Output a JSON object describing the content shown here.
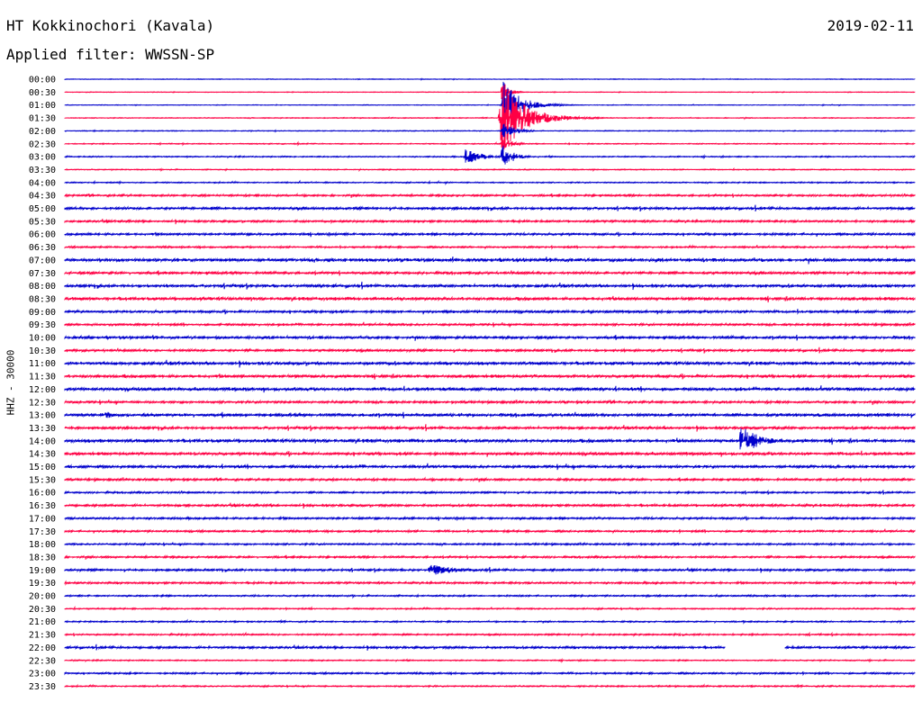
{
  "header": {
    "station": "HT Kokkinochori (Kavala)",
    "filter": "Applied filter: WWSSN-SP",
    "date": "2019-02-11"
  },
  "chart_data": {
    "type": "line",
    "title": "HT Kokkinochori (Kavala)",
    "subtitle": "Applied filter: WWSSN-SP",
    "date": "2019-02-11",
    "ylabel": "HHZ - 30000",
    "xlabel": "",
    "line_minutes": 30,
    "colors": {
      "even_row": "#0000cc",
      "odd_row": "#ff0044"
    },
    "trace_labels": [
      "00:00",
      "00:30",
      "01:00",
      "01:30",
      "02:00",
      "02:30",
      "03:00",
      "03:30",
      "04:00",
      "04:30",
      "05:00",
      "05:30",
      "06:00",
      "06:30",
      "07:00",
      "07:30",
      "08:00",
      "08:30",
      "09:00",
      "09:30",
      "10:00",
      "10:30",
      "11:00",
      "11:30",
      "12:00",
      "12:30",
      "13:00",
      "13:30",
      "14:00",
      "14:30",
      "15:00",
      "15:30",
      "16:00",
      "16:30",
      "17:00",
      "17:30",
      "18:00",
      "18:30",
      "19:00",
      "19:30",
      "20:00",
      "20:30",
      "21:00",
      "21:30",
      "22:00",
      "22:30",
      "23:00",
      "23:30"
    ],
    "noise_level": [
      0.3,
      0.3,
      0.3,
      0.4,
      0.4,
      0.5,
      0.6,
      0.5,
      0.6,
      1.0,
      1.3,
      1.1,
      1.2,
      0.9,
      1.7,
      1.3,
      1.5,
      1.6,
      1.3,
      1.1,
      1.4,
      1.2,
      1.6,
      1.5,
      1.6,
      1.2,
      1.6,
      1.4,
      1.7,
      1.5,
      1.4,
      1.1,
      0.9,
      1.2,
      1.1,
      1.0,
      0.9,
      1.0,
      1.1,
      1.0,
      0.8,
      0.7,
      0.7,
      0.8,
      1.2,
      0.6,
      0.9,
      0.7
    ],
    "events": [
      {
        "row": 1,
        "start_min": 15.4,
        "duration_min": 0.4,
        "amplitude": 22,
        "decay": 2.0
      },
      {
        "row": 2,
        "start_min": 15.4,
        "duration_min": 1.5,
        "amplitude": 30,
        "decay": 2.5
      },
      {
        "row": 3,
        "start_min": 15.3,
        "duration_min": 2.5,
        "amplitude": 45,
        "decay": 3.0
      },
      {
        "row": 4,
        "start_min": 15.4,
        "duration_min": 0.8,
        "amplitude": 12,
        "decay": 2.0
      },
      {
        "row": 5,
        "start_min": 15.4,
        "duration_min": 0.6,
        "amplitude": 10,
        "decay": 2.0
      },
      {
        "row": 6,
        "start_min": 14.1,
        "duration_min": 0.8,
        "amplitude": 10,
        "decay": 1.5
      },
      {
        "row": 6,
        "start_min": 15.4,
        "duration_min": 0.5,
        "amplitude": 18,
        "decay": 1.5
      },
      {
        "row": 28,
        "start_min": 23.8,
        "duration_min": 0.9,
        "amplitude": 20,
        "decay": 1.5
      },
      {
        "row": 38,
        "start_min": 12.8,
        "duration_min": 1.2,
        "amplitude": 7,
        "decay": 1.2
      },
      {
        "row": 26,
        "start_min": 1.4,
        "duration_min": 0.3,
        "amplitude": 6,
        "decay": 1.2
      }
    ],
    "gaps": [
      {
        "row": 44,
        "start_min": 23.3,
        "end_min": 25.4
      }
    ]
  }
}
